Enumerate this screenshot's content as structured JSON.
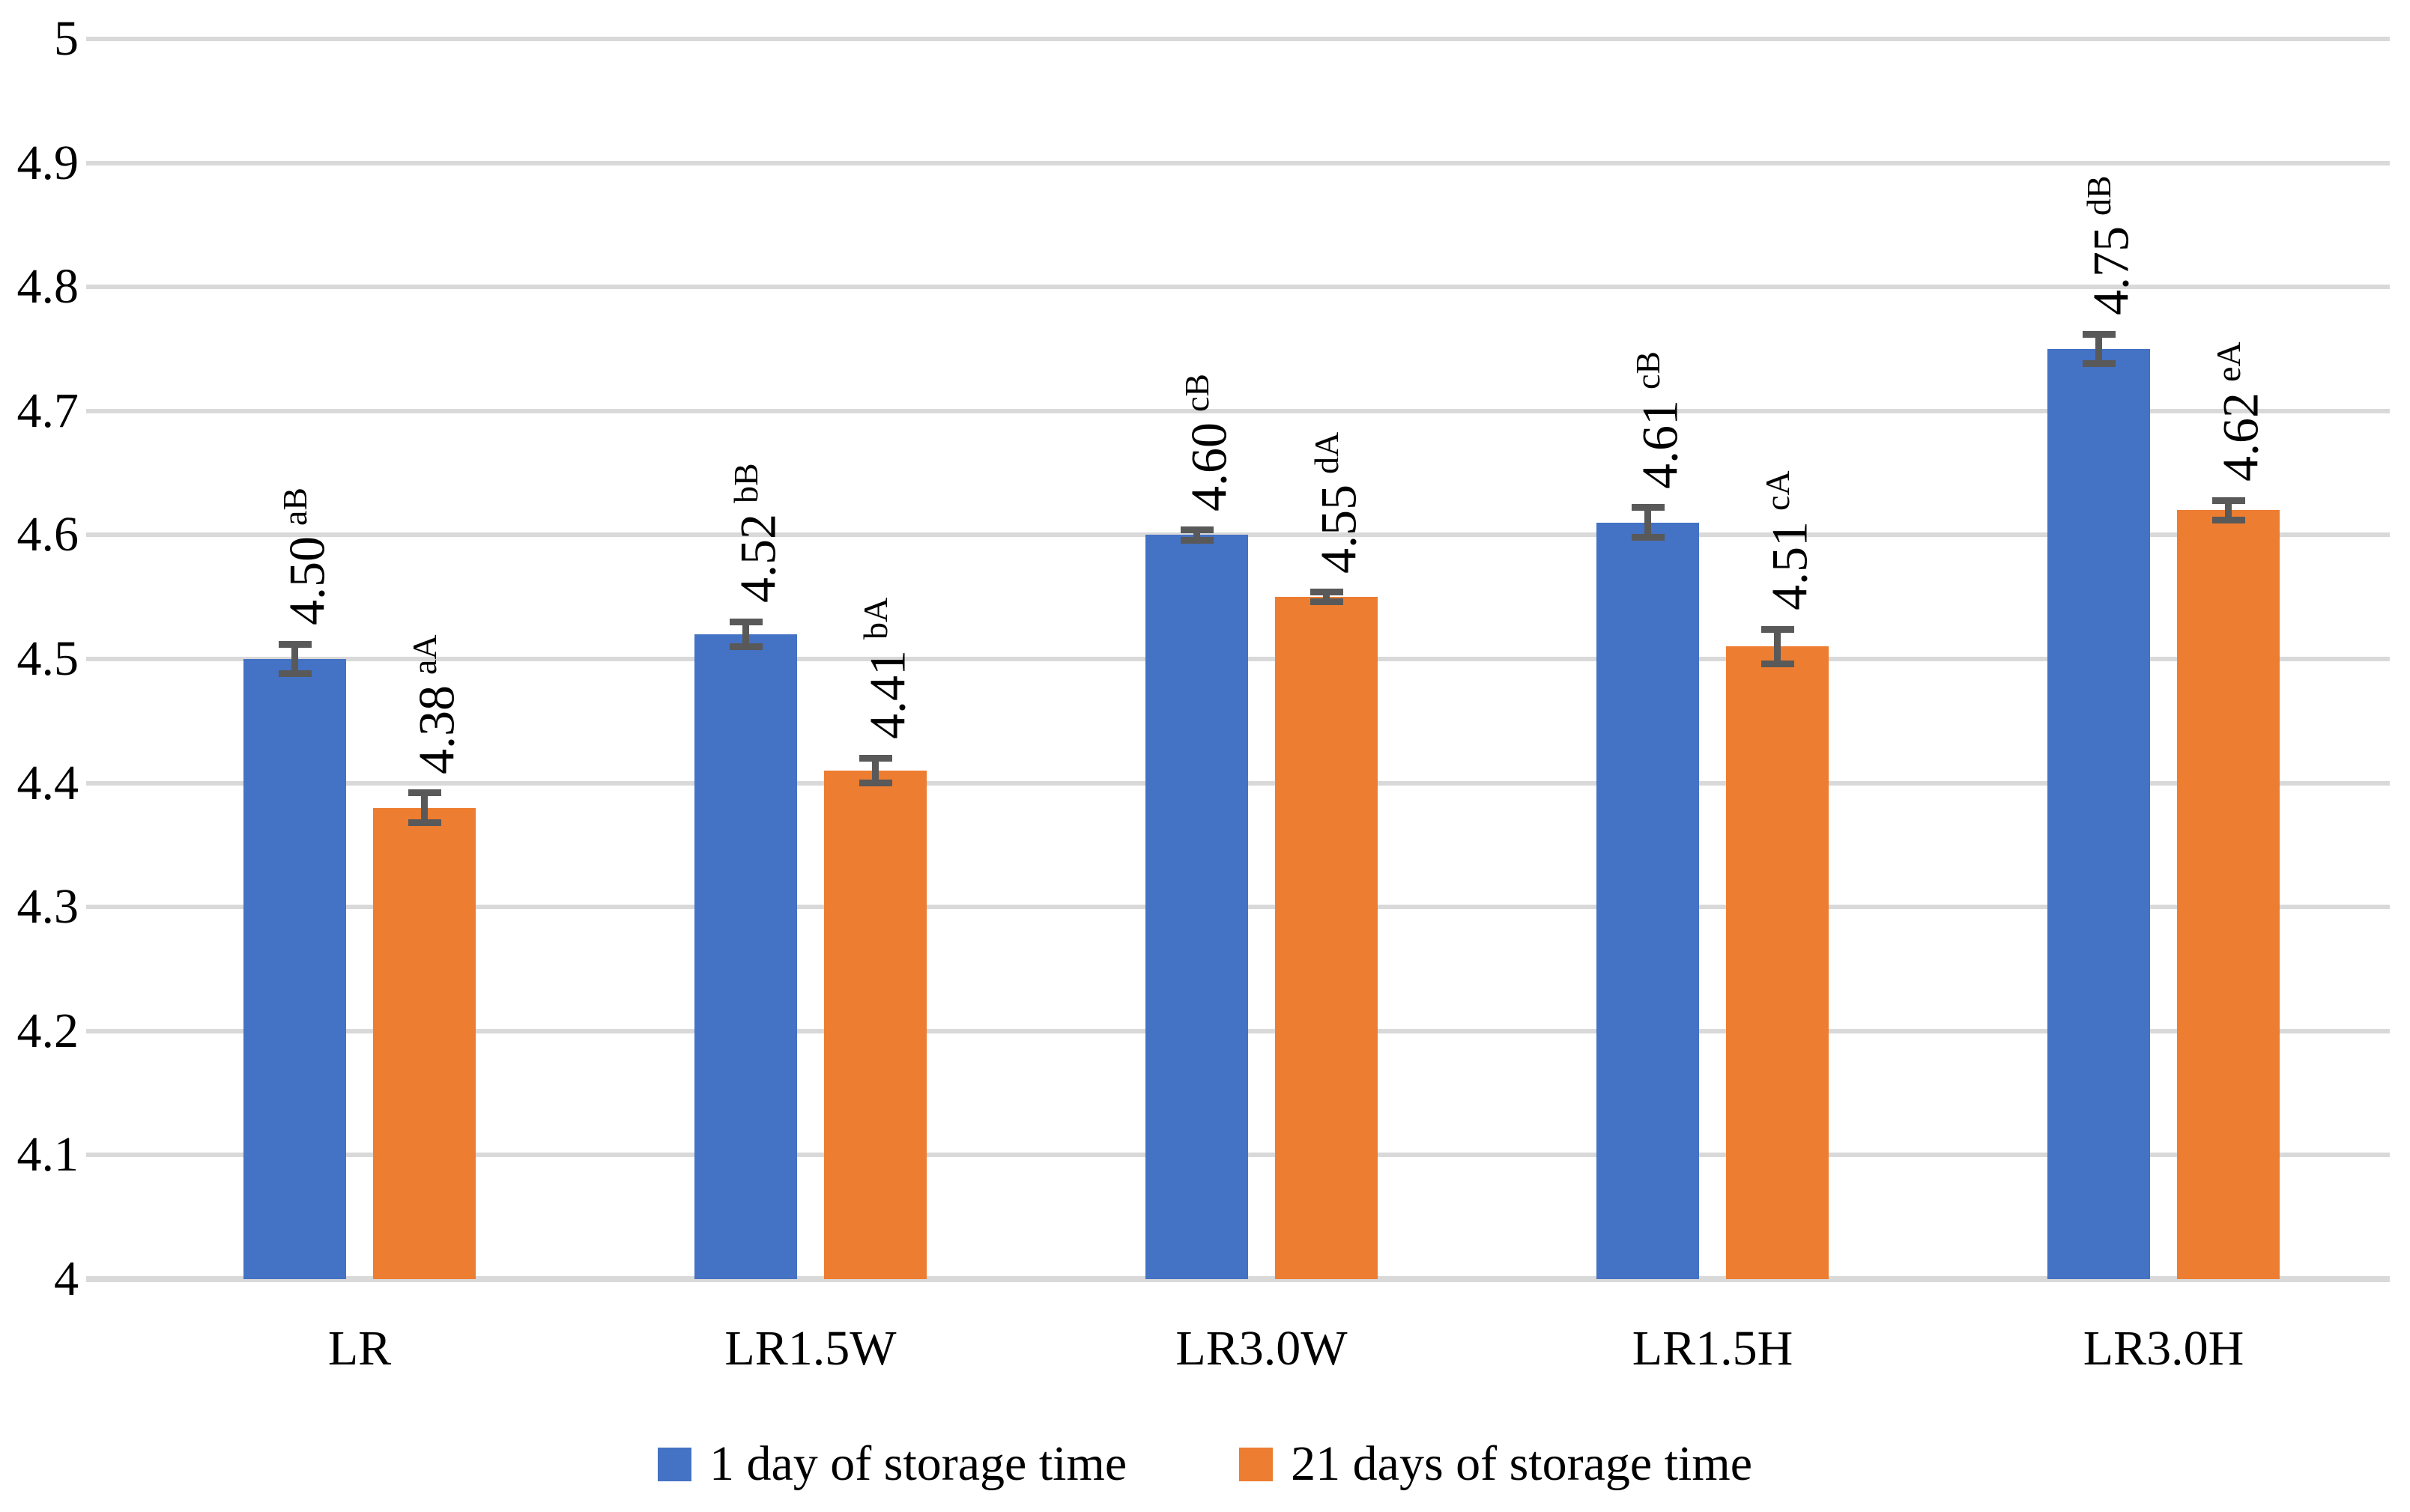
{
  "chart_data": {
    "type": "bar",
    "title": "",
    "xlabel": "",
    "ylabel": "",
    "categories": [
      "LR",
      "LR1.5W",
      "LR3.0W",
      "LR1.5H",
      "LR3.0H"
    ],
    "series": [
      {
        "name": "1 day of storage time",
        "color": "#4472C4",
        "values": [
          4.5,
          4.52,
          4.6,
          4.61,
          4.75
        ],
        "labels": [
          "4.50",
          "4.52",
          "4.60",
          "4.61",
          "4.75"
        ],
        "superscripts": [
          "aB",
          "bB",
          "cB",
          "cB",
          "dB"
        ],
        "errors": [
          0.012,
          0.01,
          0.004,
          0.012,
          0.012
        ]
      },
      {
        "name": "21 days of storage time",
        "color": "#ED7D31",
        "values": [
          4.38,
          4.41,
          4.55,
          4.51,
          4.62
        ],
        "labels": [
          "4.38",
          "4.41",
          "4.55",
          "4.51",
          "4.62"
        ],
        "superscripts": [
          "aA",
          "bA",
          "dA",
          "cA",
          "eA"
        ],
        "errors": [
          0.012,
          0.01,
          0.004,
          0.014,
          0.008
        ]
      }
    ],
    "ylim": [
      4,
      5
    ],
    "ytick_labels": [
      "4",
      "4.1",
      "4.2",
      "4.3",
      "4.4",
      "4.5",
      "4.6",
      "4.7",
      "4.8",
      "4.9",
      "5"
    ],
    "grid": true,
    "legend_position": "bottom",
    "gridline_color": "#D9D9D9",
    "error_bar_color": "#595959"
  }
}
